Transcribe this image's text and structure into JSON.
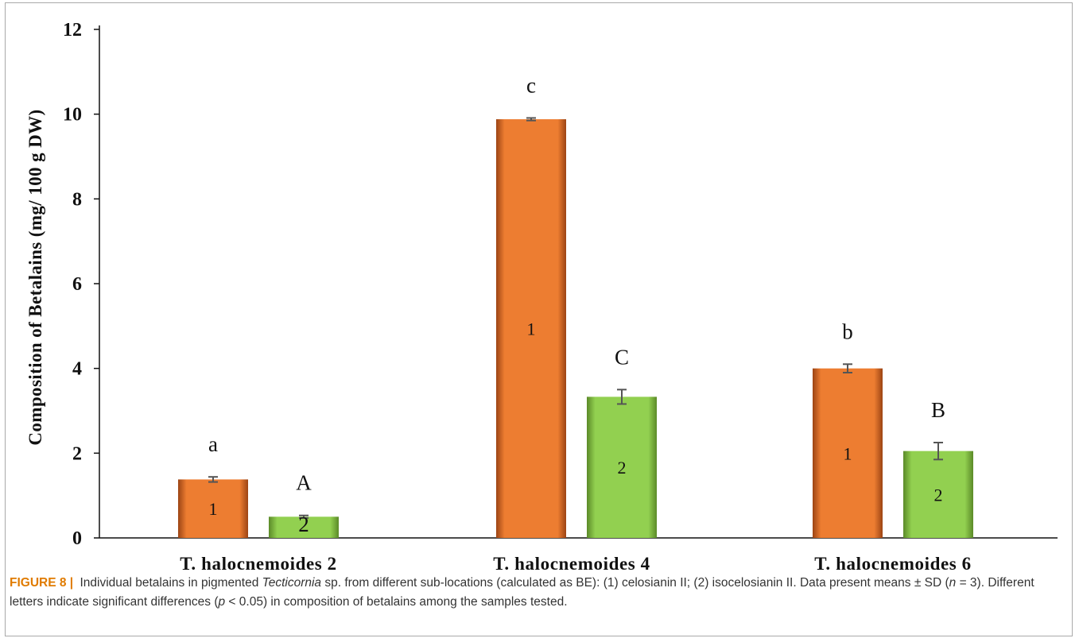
{
  "colors": {
    "series1": "#ED7D31",
    "series2": "#92D050",
    "axis": "#111111",
    "accent": "#E07B00"
  },
  "chart_data": {
    "type": "bar",
    "title": "",
    "xlabel": "",
    "ylabel": "Composition of Betalains  (mg/ 100 g DW)",
    "ylim": [
      0,
      12
    ],
    "yticks": [
      0,
      2,
      4,
      6,
      8,
      10,
      12
    ],
    "yticklabels": [
      "0",
      "2",
      "4",
      "6",
      "8",
      "10",
      "12"
    ],
    "grid": false,
    "legend": "none",
    "categories": [
      "T. halocnemoides 2",
      "T. halocnemoides 4",
      "T. halocnemoides 6"
    ],
    "series": [
      {
        "label": "1",
        "color": "#ED7D31",
        "values": [
          1.38,
          9.88,
          4.0
        ],
        "errors": [
          0.06,
          0.03,
          0.1
        ],
        "significance": [
          "a",
          "c",
          "b"
        ]
      },
      {
        "label": "2",
        "color": "#92D050",
        "values": [
          0.5,
          3.33,
          2.05
        ],
        "errors": [
          0.03,
          0.17,
          0.2
        ],
        "significance": [
          "A",
          "C",
          "B"
        ]
      }
    ]
  },
  "caption": {
    "figure_label": "FIGURE 8",
    "separator": "|",
    "text_before_italic": " Individual betalains in pigmented ",
    "italic_genus": "Tecticornia",
    "text_after_italic": " sp. from different sub-locations (calculated as BE): (1) celosianin II; (2) isocelosianin II. Data present means ± SD (",
    "n_var": "n",
    "n_value": " = 3). Different letters indicate significant differences (",
    "p_var": "p",
    "p_value": " < 0.05) in composition of betalains among the samples tested."
  }
}
